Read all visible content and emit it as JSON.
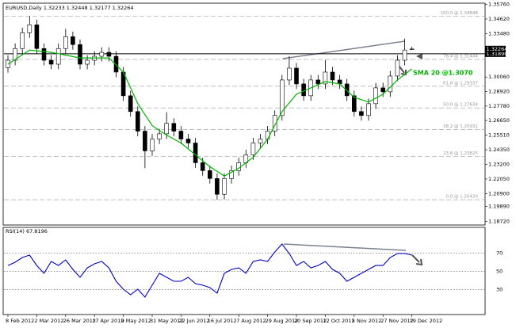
{
  "chart_data": [
    {
      "type": "candlestick",
      "title": "EURUSD,Daily 1.32233 1.32448 1.32177 1.32264",
      "annotation": "SMA 20 @1.3070",
      "categories": [
        "8 Feb 2012",
        null,
        null,
        null,
        "2 Mar 2012",
        null,
        null,
        null,
        "26 Mar 2012",
        null,
        null,
        null,
        "17 Apr 2012",
        null,
        null,
        null,
        "9 May 2012",
        null,
        null,
        null,
        "31 May 2012",
        null,
        null,
        null,
        "22 Jun 2012",
        null,
        null,
        null,
        "16 Jul 2012",
        null,
        null,
        null,
        "7 Aug 2012",
        null,
        null,
        null,
        "29 Aug 2012",
        null,
        null,
        null,
        "20 Sep 2012",
        null,
        null,
        null,
        "12 Oct 2012",
        null,
        null,
        null,
        "5 Nov 2012",
        null,
        null,
        null,
        "27 Nov 2012",
        null,
        null,
        null,
        "19 Dec 2012"
      ],
      "open": [
        1.308,
        1.3138,
        1.323,
        1.3354,
        1.3416,
        1.323,
        1.3138,
        1.3107,
        1.323,
        1.3323,
        1.3261,
        1.3107,
        1.3138,
        1.3169,
        1.32,
        1.3169,
        1.3045,
        1.2859,
        1.2735,
        1.2581,
        1.2426,
        1.2519,
        1.256,
        1.2642,
        1.2581,
        1.2519,
        1.2488,
        1.2333,
        1.2271,
        1.2209,
        1.2085,
        1.2209,
        1.2271,
        1.2333,
        1.2395,
        1.2488,
        1.2519,
        1.2581,
        1.2704,
        1.2983,
        1.3076,
        1.2952,
        1.2859,
        1.2983,
        1.2952,
        1.3045,
        1.2983,
        1.2952,
        1.2859,
        1.2735,
        1.2704,
        1.2797,
        1.2921,
        1.289,
        1.3014,
        1.3138,
        1.32233
      ],
      "high": [
        1.3178,
        1.327,
        1.3394,
        1.3485,
        1.3456,
        1.327,
        1.3178,
        1.327,
        1.3385,
        1.3363,
        1.3301,
        1.3178,
        1.3209,
        1.324,
        1.324,
        1.3209,
        1.3085,
        1.2899,
        1.2775,
        1.2621,
        1.2559,
        1.26,
        1.273,
        1.2682,
        1.2621,
        1.2559,
        1.2528,
        1.2373,
        1.2311,
        1.2249,
        1.2249,
        1.2311,
        1.2373,
        1.2435,
        1.2528,
        1.2559,
        1.2621,
        1.2744,
        1.3023,
        1.317,
        1.3116,
        1.2992,
        1.3023,
        1.3023,
        1.314,
        1.3085,
        1.3023,
        1.2992,
        1.2899,
        1.2775,
        1.2837,
        1.2961,
        1.2961,
        1.3054,
        1.3178,
        1.3308,
        1.32448
      ],
      "low": [
        1.304,
        1.3098,
        1.319,
        1.3314,
        1.319,
        1.3098,
        1.3067,
        1.3067,
        1.319,
        1.3221,
        1.3067,
        1.3067,
        1.3098,
        1.3129,
        1.3129,
        1.3005,
        1.2819,
        1.2695,
        1.2541,
        1.229,
        1.2386,
        1.2479,
        1.252,
        1.2541,
        1.2479,
        1.2448,
        1.2293,
        1.2231,
        1.2169,
        1.2042,
        1.2045,
        1.2169,
        1.2231,
        1.2293,
        1.2355,
        1.2448,
        1.2479,
        1.2541,
        1.2664,
        1.2943,
        1.2912,
        1.2819,
        1.2819,
        1.2912,
        1.2912,
        1.2943,
        1.2912,
        1.2819,
        1.2695,
        1.2664,
        1.2664,
        1.2757,
        1.285,
        1.285,
        1.2974,
        1.3098,
        1.32177
      ],
      "close": [
        1.3138,
        1.323,
        1.3354,
        1.3416,
        1.323,
        1.3138,
        1.3107,
        1.323,
        1.3323,
        1.3261,
        1.3107,
        1.3138,
        1.3169,
        1.32,
        1.3169,
        1.3045,
        1.2859,
        1.2735,
        1.2581,
        1.2426,
        1.2519,
        1.256,
        1.2642,
        1.2581,
        1.2519,
        1.2488,
        1.2333,
        1.2271,
        1.2209,
        1.2085,
        1.2209,
        1.2271,
        1.2333,
        1.2395,
        1.2488,
        1.2519,
        1.2581,
        1.2704,
        1.2983,
        1.3076,
        1.2952,
        1.2859,
        1.2983,
        1.2952,
        1.3045,
        1.2983,
        1.2952,
        1.2859,
        1.2735,
        1.2704,
        1.2797,
        1.2921,
        1.289,
        1.3014,
        1.3138,
        1.3218,
        1.32264
      ],
      "color": "#000000",
      "sma": {
        "color": "#00b400",
        "values": [
          1.3107,
          1.3144,
          1.3181,
          1.3218,
          1.3212,
          1.3206,
          1.32,
          1.3189,
          1.3178,
          1.3167,
          1.3156,
          1.3156,
          1.3156,
          1.3156,
          1.3156,
          1.31,
          1.3045,
          1.2921,
          1.2797,
          1.271,
          1.2624,
          1.2587,
          1.255,
          1.2519,
          1.2488,
          1.2441,
          1.2395,
          1.2348,
          1.2302,
          1.2265,
          1.2228,
          1.2259,
          1.229,
          1.2333,
          1.2376,
          1.2447,
          1.2519,
          1.2627,
          1.2735,
          1.2803,
          1.2871,
          1.2896,
          1.2921,
          1.2946,
          1.2971,
          1.2961,
          1.2952,
          1.2899,
          1.2847,
          1.2828,
          1.281,
          1.284,
          1.2871,
          1.2927,
          1.2983,
          1.3026,
          1.307
        ]
      },
      "fib_levels": [
        {
          "label": "100.0 @ 1.34848",
          "value": 1.34848
        },
        {
          "label": "76.4 @ 1.31444",
          "value": 1.31444
        },
        {
          "label": "61.8 @ 1.29337",
          "value": 1.29337
        },
        {
          "label": "50.0 @ 1.27634",
          "value": 1.27634
        },
        {
          "label": "38.2 @ 1.25931",
          "value": 1.25931
        },
        {
          "label": "23.6 @ 1.23825",
          "value": 1.23825
        },
        {
          "label": "0.0 @ 1.20420",
          "value": 1.2042
        }
      ],
      "support": {
        "value": 1.3189,
        "label": "1.31890"
      },
      "ylim": [
        1.185,
        1.358
      ],
      "yticks": [
        {
          "value": 1.3576,
          "label": "1.35760"
        },
        {
          "value": 1.3462,
          "label": "1.34620"
        },
        {
          "value": 1.3348,
          "label": "1.33480"
        },
        {
          "value": 1.3006,
          "label": "1.30060"
        },
        {
          "value": 1.2892,
          "label": "1.28920"
        },
        {
          "value": 1.2778,
          "label": "1.27780"
        },
        {
          "value": 1.2665,
          "label": "1.26650"
        },
        {
          "value": 1.2551,
          "label": "1.25510"
        },
        {
          "value": 1.2435,
          "label": "1.24350"
        },
        {
          "value": 1.232,
          "label": "1.23200"
        },
        {
          "value": 1.2205,
          "label": "1.22050"
        },
        {
          "value": 1.209,
          "label": "1.20900"
        },
        {
          "value": 1.1989,
          "label": "1.19890"
        },
        {
          "value": 1.1872,
          "label": "1.18720"
        }
      ]
    },
    {
      "type": "line",
      "title": "RSI(14) 67.8196",
      "color": "#0000c8",
      "values": [
        56.5,
        60.0,
        65.2,
        67.8,
        56.5,
        47.9,
        60.9,
        56.5,
        62.6,
        52.2,
        43.6,
        53.9,
        58.3,
        60.9,
        53.9,
        39.3,
        30.6,
        24.6,
        30.6,
        22.0,
        35.0,
        47.9,
        43.6,
        39.3,
        39.3,
        43.6,
        36.7,
        35.0,
        32.4,
        26.3,
        47.9,
        52.2,
        53.9,
        47.9,
        60.9,
        62.6,
        60.9,
        71.2,
        79.9,
        69.5,
        56.5,
        60.9,
        53.9,
        56.5,
        60.9,
        52.2,
        47.9,
        39.3,
        43.6,
        47.9,
        52.2,
        56.5,
        56.5,
        65.2,
        69.5,
        69.5,
        67.8196
      ],
      "ylim": [
        3,
        98
      ],
      "yticks": [
        70,
        50,
        30
      ]
    }
  ]
}
